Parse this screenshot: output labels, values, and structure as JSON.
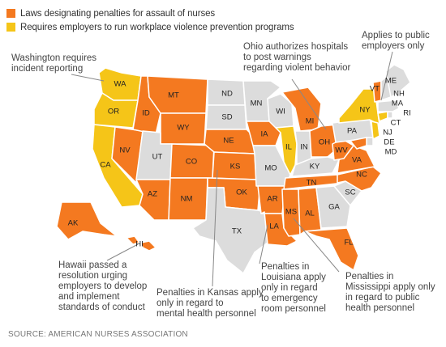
{
  "colors": {
    "penalty": "#f47920",
    "prevention": "#f5c518",
    "none": "#dcdcdc"
  },
  "legend": [
    {
      "label": "Laws designating penalties for assault of nurses",
      "category": "penalty"
    },
    {
      "label": "Requires employers to run workplace violence prevention programs",
      "category": "prevention"
    }
  ],
  "states": {
    "WA": "prevention",
    "OR": "prevention",
    "CA": "prevention",
    "NV": "penalty",
    "ID": "penalty",
    "MT": "penalty",
    "WY": "penalty",
    "UT": "none",
    "AZ": "penalty",
    "NM": "penalty",
    "CO": "penalty",
    "ND": "none",
    "SD": "none",
    "NE": "penalty",
    "KS": "penalty",
    "OK": "penalty",
    "TX": "none",
    "MN": "none",
    "IA": "penalty",
    "MO": "none",
    "AR": "penalty",
    "LA": "penalty",
    "WI": "none",
    "IL": "prevention",
    "MI": "penalty",
    "IN": "none",
    "OH": "penalty",
    "KY": "none",
    "TN": "penalty",
    "MS": "penalty",
    "AL": "penalty",
    "GA": "none",
    "FL": "penalty",
    "SC": "none",
    "NC": "penalty",
    "VA": "penalty",
    "WV": "penalty",
    "PA": "none",
    "NY": "prevention",
    "NJ": "prevention",
    "DE": "none",
    "MD": "penalty",
    "CT": "prevention",
    "RI": "none",
    "MA": "none",
    "VT": "penalty",
    "NH": "none",
    "ME": "none",
    "AK": "penalty",
    "HI": "penalty"
  },
  "notes": {
    "washington": [
      "Washington requires",
      "incident reporting"
    ],
    "ohio": [
      "Ohio authorizes hospitals",
      "to post warnings",
      "regarding violent behavior"
    ],
    "public": [
      "Applies to public",
      "employers only"
    ],
    "hawaii": [
      "Hawaii passed a",
      "resolution urging",
      "employers to develop",
      "and implement",
      "standards of conduct"
    ],
    "kansas": [
      "Penalties in Kansas apply",
      "only in regard to",
      "mental health personnel"
    ],
    "louisiana": [
      "Penalties in",
      "Louisiana apply",
      "only in regard",
      "to emergency",
      "room personnel"
    ],
    "mississippi": [
      "Penalties in",
      "Mississippi apply only",
      "in regard to public",
      "health personnel"
    ]
  },
  "source": "SOURCE: AMERICAN NURSES ASSOCIATION"
}
